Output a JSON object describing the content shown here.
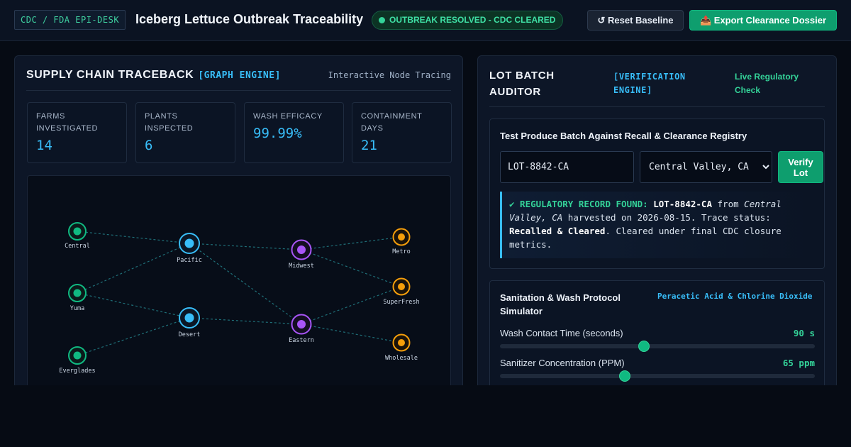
{
  "header": {
    "brand": "CDC / FDA EPI-DESK",
    "title": "Iceberg Lettuce Outbreak Traceability",
    "status": "OUTBREAK RESOLVED - CDC CLEARED",
    "reset_label": "↺ Reset Baseline",
    "export_label": "📤 Export Clearance Dossier"
  },
  "traceback": {
    "title": "SUPPLY CHAIN TRACEBACK",
    "engine": "[GRAPH ENGINE]",
    "subtitle": "Interactive Node Tracing",
    "kpis": [
      {
        "label": "FARMS INVESTIGATED",
        "value": "14"
      },
      {
        "label": "PLANTS INSPECTED",
        "value": "6"
      },
      {
        "label": "WASH EFFICACY",
        "value": "99.99%"
      },
      {
        "label": "CONTAINMENT DAYS",
        "value": "21"
      }
    ],
    "nodes": {
      "central": "Central",
      "yuma": "Yuma",
      "everglades": "Everglades",
      "pacific": "Pacific",
      "desert": "Desert",
      "midwest": "Midwest",
      "eastern": "Eastern",
      "metro": "Metro",
      "superfresh": "SuperFresh",
      "wholesale": "Wholesale"
    },
    "colors": {
      "farm": "#10b981",
      "plant": "#38bdf8",
      "hub": "#a855f7",
      "retail": "#f59e0b"
    }
  },
  "auditor": {
    "title_line1": "LOT BATCH",
    "title_line2": "AUDITOR",
    "engine_line1": "[VERIFICATION",
    "engine_line2": "ENGINE]",
    "check_line1": "Live Regulatory",
    "check_line2": "Check",
    "card_title": "Test Produce Batch Against Recall & Clearance Registry",
    "lot_value": "LOT-8842-CA",
    "region_selected": "Central Valley, CA",
    "verify_line1": "Verify",
    "verify_line2": "Lot",
    "result": {
      "prefix": "✔ REGULATORY RECORD FOUND:",
      "lot": "LOT-8842-CA",
      "from": "from",
      "region": "Central Valley, CA",
      "harvest": "harvested on 2026-08-15. Trace status:",
      "status": "Recalled & Cleared",
      "suffix": ". Cleared under final CDC closure metrics."
    }
  },
  "simulator": {
    "title": "Sanitation & Wash Protocol Simulator",
    "tag": "Peracetic Acid & Chlorine Dioxide",
    "sliders": [
      {
        "label": "Wash Contact Time (seconds)",
        "value": "90 s",
        "fraction": 0.458
      },
      {
        "label": "Sanitizer Concentration (PPM)",
        "value": "65 ppm",
        "fraction": 0.397
      }
    ]
  }
}
